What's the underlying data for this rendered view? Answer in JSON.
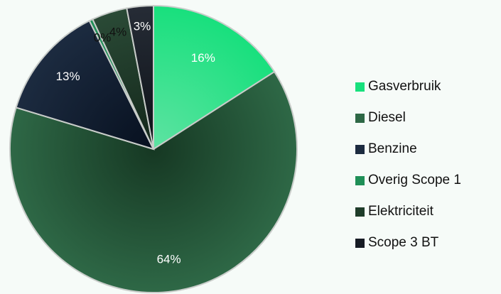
{
  "chart_data": {
    "type": "pie",
    "title": "",
    "slices": [
      {
        "name": "Gasverbruik",
        "value": 16,
        "label": "16%",
        "color": "#18e07d",
        "color_dark": "#5ee3a2",
        "label_color": "#ffffff"
      },
      {
        "name": "Diesel",
        "value": 64,
        "label": "64%",
        "color": "#2e6846",
        "color_dark": "#163823",
        "label_color": "#ffffff"
      },
      {
        "name": "Benzine",
        "value": 13,
        "label": "13%",
        "color": "#1c2b40",
        "color_dark": "#07101f",
        "label_color": "#ffffff"
      },
      {
        "name": "Overig Scope 1",
        "value": 0.4,
        "label": "0%",
        "color": "#1f8f57",
        "color_dark": "#1f8f57",
        "label_color": "#111111"
      },
      {
        "name": "Elektriciteit",
        "value": 4,
        "label": "4%",
        "color": "#2a4a36",
        "color_dark": "#13261a",
        "label_color": "#111111"
      },
      {
        "name": "Scope 3 BT",
        "value": 3,
        "label": "3%",
        "color": "#262c36",
        "color_dark": "#0d1117",
        "label_color": "#ffffff"
      }
    ],
    "legend_position": "right"
  },
  "legend": {
    "items": [
      {
        "label": "Gasverbruik",
        "color": "#18e07d"
      },
      {
        "label": "Diesel",
        "color": "#2e6846"
      },
      {
        "label": "Benzine",
        "color": "#1c2b40"
      },
      {
        "label": "Overig Scope 1",
        "color": "#1f8f57"
      },
      {
        "label": "Elektriciteit",
        "color": "#1f3d2a"
      },
      {
        "label": "Scope 3 BT",
        "color": "#161b24"
      }
    ]
  }
}
